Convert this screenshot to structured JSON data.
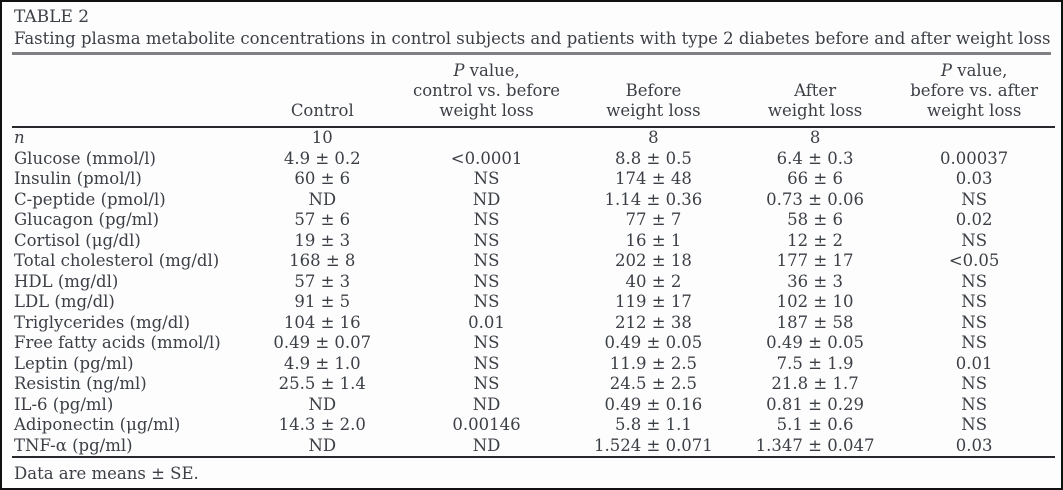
{
  "page": {
    "label": "TABLE 2",
    "caption": "Fasting plasma metabolite concentrations in control subjects and patients with type 2 diabetes before and after weight loss",
    "footnote": "Data are means ± SE."
  },
  "header": {
    "control": "Control",
    "p_control_before": {
      "p": "P",
      "rest": " value,",
      "line2": "control vs. before",
      "line3": "weight loss"
    },
    "before": {
      "line1": "Before",
      "line2": "weight loss"
    },
    "after": {
      "line1": "After",
      "line2": "weight loss"
    },
    "p_before_after": {
      "p": "P",
      "rest": " value,",
      "line2": "before vs. after",
      "line3": "weight loss"
    }
  },
  "rows": [
    {
      "label": "n",
      "values": [
        "10",
        "",
        "8",
        "8",
        ""
      ]
    },
    {
      "label": "Glucose (mmol/l)",
      "values": [
        "4.9 ± 0.2",
        "<0.0001",
        "8.8 ± 0.5",
        "6.4 ± 0.3",
        "0.00037"
      ]
    },
    {
      "label": "Insulin (pmol/l)",
      "values": [
        "60 ± 6",
        "NS",
        "174 ± 48",
        "66 ± 6",
        "0.03"
      ]
    },
    {
      "label": "C-peptide (pmol/l)",
      "values": [
        "ND",
        "ND",
        "1.14 ± 0.36",
        "0.73 ± 0.06",
        "NS"
      ]
    },
    {
      "label": "Glucagon (pg/ml)",
      "values": [
        "57 ± 6",
        "NS",
        "77 ± 7",
        "58 ± 6",
        "0.02"
      ]
    },
    {
      "label": "Cortisol (μg/dl)",
      "values": [
        "19 ± 3",
        "NS",
        "16 ± 1",
        "12 ± 2",
        "NS"
      ]
    },
    {
      "label": "Total cholesterol (mg/dl)",
      "values": [
        "168 ± 8",
        "NS",
        "202 ± 18",
        "177 ± 17",
        "<0.05"
      ]
    },
    {
      "label": "HDL (mg/dl)",
      "values": [
        "57 ± 3",
        "NS",
        "40 ± 2",
        "36 ± 3",
        "NS"
      ]
    },
    {
      "label": "LDL (mg/dl)",
      "values": [
        "91 ± 5",
        "NS",
        "119 ± 17",
        "102 ± 10",
        "NS"
      ]
    },
    {
      "label": "Triglycerides (mg/dl)",
      "values": [
        "104 ± 16",
        "0.01",
        "212 ± 38",
        "187 ± 58",
        "NS"
      ]
    },
    {
      "label": "Free fatty acids (mmol/l)",
      "values": [
        "0.49 ± 0.07",
        "NS",
        "0.49 ± 0.05",
        "0.49 ± 0.05",
        "NS"
      ]
    },
    {
      "label": "Leptin (pg/ml)",
      "values": [
        "4.9 ± 1.0",
        "NS",
        "11.9 ± 2.5",
        "7.5 ± 1.9",
        "0.01"
      ]
    },
    {
      "label": "Resistin (ng/ml)",
      "values": [
        "25.5 ± 1.4",
        "NS",
        "24.5 ± 2.5",
        "21.8 ± 1.7",
        "NS"
      ]
    },
    {
      "label": "IL-6 (pg/ml)",
      "values": [
        "ND",
        "ND",
        "0.49 ± 0.16",
        "0.81 ± 0.29",
        "NS"
      ]
    },
    {
      "label": "Adiponectin (μg/ml)",
      "values": [
        "14.3 ± 2.0",
        "0.00146",
        "5.8 ± 1.1",
        "5.1 ± 0.6",
        "NS"
      ]
    },
    {
      "label": "TNF-α (pg/ml)",
      "values": [
        "ND",
        "ND",
        "1.524 ± 0.071",
        "1.347 ± 0.047",
        "0.03"
      ]
    }
  ],
  "colors": {
    "text": "#3c4046",
    "caption_rule": "#7e8083",
    "header_rule": "#27292d",
    "page_border": "#111111",
    "background": "#fdfdfd"
  }
}
